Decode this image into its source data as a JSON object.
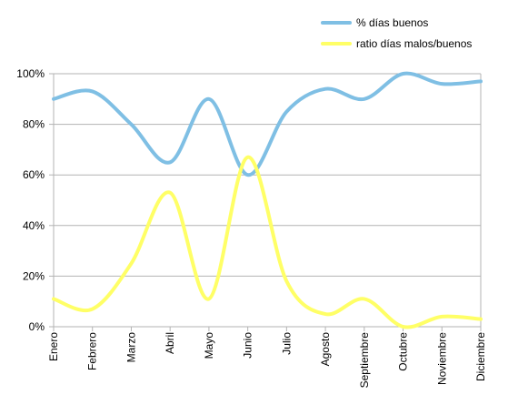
{
  "chart_data": {
    "type": "line",
    "smooth": true,
    "categories": [
      "Enero",
      "Febrero",
      "Marzo",
      "Abril",
      "Mayo",
      "Junio",
      "Julio",
      "Agosto",
      "Septiembre",
      "Octubre",
      "Noviembre",
      "Diciembre"
    ],
    "series": [
      {
        "name": "% días buenos",
        "color": "#7fbfe4",
        "values": [
          0.9,
          0.93,
          0.8,
          0.65,
          0.9,
          0.6,
          0.85,
          0.94,
          0.9,
          1.0,
          0.96,
          0.97
        ]
      },
      {
        "name": "ratio días malos/buenos",
        "color": "#ffff66",
        "values": [
          0.11,
          0.07,
          0.25,
          0.53,
          0.11,
          0.67,
          0.18,
          0.05,
          0.11,
          0.0,
          0.04,
          0.03
        ]
      }
    ],
    "ylim": [
      0,
      1
    ],
    "yticks": [
      "0%",
      "20%",
      "40%",
      "60%",
      "80%",
      "100%"
    ],
    "grid": true,
    "legend_position": "top-right",
    "title": "",
    "xlabel": "",
    "ylabel": ""
  }
}
